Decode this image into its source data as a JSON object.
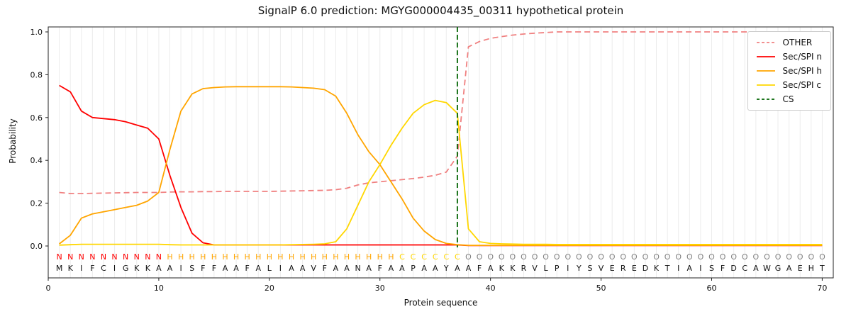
{
  "figure": {
    "title": "SignalP 6.0 prediction: MGYG000004435_00311 hypothetical protein"
  },
  "chart_data": {
    "type": "line",
    "title": "SignalP 6.0 prediction: MGYG000004435_00311 hypothetical protein",
    "xlabel": "Protein sequence",
    "ylabel": "Probability",
    "xlim": [
      0,
      71
    ],
    "ylim": [
      0.0,
      1.0
    ],
    "xticks": [
      0,
      10,
      20,
      30,
      40,
      50,
      60,
      70
    ],
    "yticks": [
      0.0,
      0.2,
      0.4,
      0.6,
      0.8,
      1.0
    ],
    "grid": "vertical-per-residue",
    "legend_position": "upper-right",
    "x": [
      1,
      2,
      3,
      4,
      5,
      6,
      7,
      8,
      9,
      10,
      11,
      12,
      13,
      14,
      15,
      16,
      17,
      18,
      19,
      20,
      21,
      22,
      23,
      24,
      25,
      26,
      27,
      28,
      29,
      30,
      31,
      32,
      33,
      34,
      35,
      36,
      37,
      38,
      39,
      40,
      41,
      42,
      43,
      44,
      45,
      46,
      47,
      48,
      49,
      50,
      51,
      52,
      53,
      54,
      55,
      56,
      57,
      58,
      59,
      60,
      61,
      62,
      63,
      64,
      65,
      66,
      67,
      68,
      69,
      70
    ],
    "series": [
      {
        "name": "OTHER",
        "color": "#F08080",
        "dash": true,
        "values": [
          0.25,
          0.245,
          0.245,
          0.246,
          0.247,
          0.248,
          0.249,
          0.25,
          0.25,
          0.25,
          0.252,
          0.253,
          0.253,
          0.254,
          0.254,
          0.255,
          0.255,
          0.255,
          0.255,
          0.255,
          0.256,
          0.257,
          0.258,
          0.259,
          0.26,
          0.263,
          0.27,
          0.285,
          0.295,
          0.3,
          0.305,
          0.31,
          0.315,
          0.322,
          0.33,
          0.345,
          0.42,
          0.93,
          0.955,
          0.97,
          0.978,
          0.985,
          0.99,
          0.994,
          0.997,
          1.0,
          1.0,
          1.0,
          1.0,
          1.0,
          1.0,
          1.0,
          1.0,
          1.0,
          1.0,
          1.0,
          1.0,
          1.0,
          1.0,
          1.0,
          1.0,
          1.0,
          1.0,
          1.0,
          1.0,
          1.0,
          1.0,
          1.0,
          1.0,
          1.0
        ]
      },
      {
        "name": "Sec/SPI n",
        "color": "#FF0000",
        "dash": false,
        "values": [
          0.75,
          0.72,
          0.63,
          0.6,
          0.595,
          0.59,
          0.58,
          0.565,
          0.55,
          0.5,
          0.33,
          0.18,
          0.06,
          0.015,
          0.005,
          0.005,
          0.005,
          0.005,
          0.005,
          0.005,
          0.005,
          0.005,
          0.005,
          0.005,
          0.005,
          0.005,
          0.005,
          0.005,
          0.005,
          0.005,
          0.005,
          0.005,
          0.005,
          0.005,
          0.005,
          0.005,
          0.005,
          0.002,
          0.002,
          0.002,
          0.002,
          0.002,
          0.002,
          0.002,
          0.002,
          0.002,
          0.002,
          0.002,
          0.002,
          0.002,
          0.002,
          0.002,
          0.002,
          0.002,
          0.002,
          0.002,
          0.002,
          0.002,
          0.002,
          0.002,
          0.002,
          0.002,
          0.002,
          0.002,
          0.002,
          0.002,
          0.002,
          0.002,
          0.002,
          0.002
        ]
      },
      {
        "name": "Sec/SPI h",
        "color": "#FFA500",
        "dash": false,
        "values": [
          0.01,
          0.05,
          0.13,
          0.15,
          0.16,
          0.17,
          0.18,
          0.19,
          0.21,
          0.25,
          0.45,
          0.63,
          0.71,
          0.735,
          0.74,
          0.743,
          0.744,
          0.744,
          0.744,
          0.744,
          0.744,
          0.743,
          0.74,
          0.737,
          0.73,
          0.7,
          0.62,
          0.52,
          0.44,
          0.38,
          0.3,
          0.22,
          0.13,
          0.07,
          0.03,
          0.012,
          0.006,
          0.003,
          0.003,
          0.003,
          0.003,
          0.003,
          0.003,
          0.003,
          0.003,
          0.003,
          0.003,
          0.003,
          0.003,
          0.003,
          0.003,
          0.003,
          0.003,
          0.003,
          0.003,
          0.003,
          0.003,
          0.003,
          0.003,
          0.003,
          0.003,
          0.003,
          0.003,
          0.003,
          0.003,
          0.003,
          0.003,
          0.003,
          0.003,
          0.003
        ]
      },
      {
        "name": "Sec/SPI c",
        "color": "#FFD700",
        "dash": false,
        "values": [
          0.004,
          0.006,
          0.008,
          0.008,
          0.008,
          0.008,
          0.008,
          0.008,
          0.008,
          0.008,
          0.006,
          0.005,
          0.005,
          0.005,
          0.005,
          0.005,
          0.005,
          0.005,
          0.005,
          0.005,
          0.005,
          0.006,
          0.007,
          0.008,
          0.01,
          0.02,
          0.08,
          0.19,
          0.3,
          0.38,
          0.47,
          0.55,
          0.62,
          0.66,
          0.68,
          0.67,
          0.62,
          0.08,
          0.02,
          0.012,
          0.01,
          0.009,
          0.008,
          0.008,
          0.008,
          0.007,
          0.007,
          0.007,
          0.007,
          0.007,
          0.007,
          0.007,
          0.007,
          0.007,
          0.007,
          0.007,
          0.007,
          0.007,
          0.007,
          0.007,
          0.007,
          0.007,
          0.007,
          0.007,
          0.007,
          0.007,
          0.007,
          0.007,
          0.007,
          0.007
        ]
      }
    ],
    "cs_line": {
      "name": "CS",
      "x": 37,
      "color": "#006400",
      "dash": true
    },
    "legend_items": [
      {
        "label": "OTHER",
        "color": "#F08080",
        "dash": true
      },
      {
        "label": "Sec/SPI n",
        "color": "#FF0000",
        "dash": false
      },
      {
        "label": "Sec/SPI h",
        "color": "#FFA500",
        "dash": false
      },
      {
        "label": "Sec/SPI c",
        "color": "#FFD700",
        "dash": false
      },
      {
        "label": "CS",
        "color": "#006400",
        "dash": true
      }
    ],
    "regions": "NNNNNNNNNNHHHHHHHHHHHHHHHHHHHHHCCCCCCOOOOOOOOOOOOOOOOOOOOOOOOOOOOOOOOO",
    "region_colors": {
      "N": "#FF0000",
      "H": "#FFA500",
      "C": "#FFD700",
      "O": "#808080"
    },
    "sequence": "MKIFCIGKKAAISFFAAFALIAAVFAANAFAAPAAYAAFAKKRVLPIYSVEREDKTIAISFDCAWGAEHT"
  }
}
